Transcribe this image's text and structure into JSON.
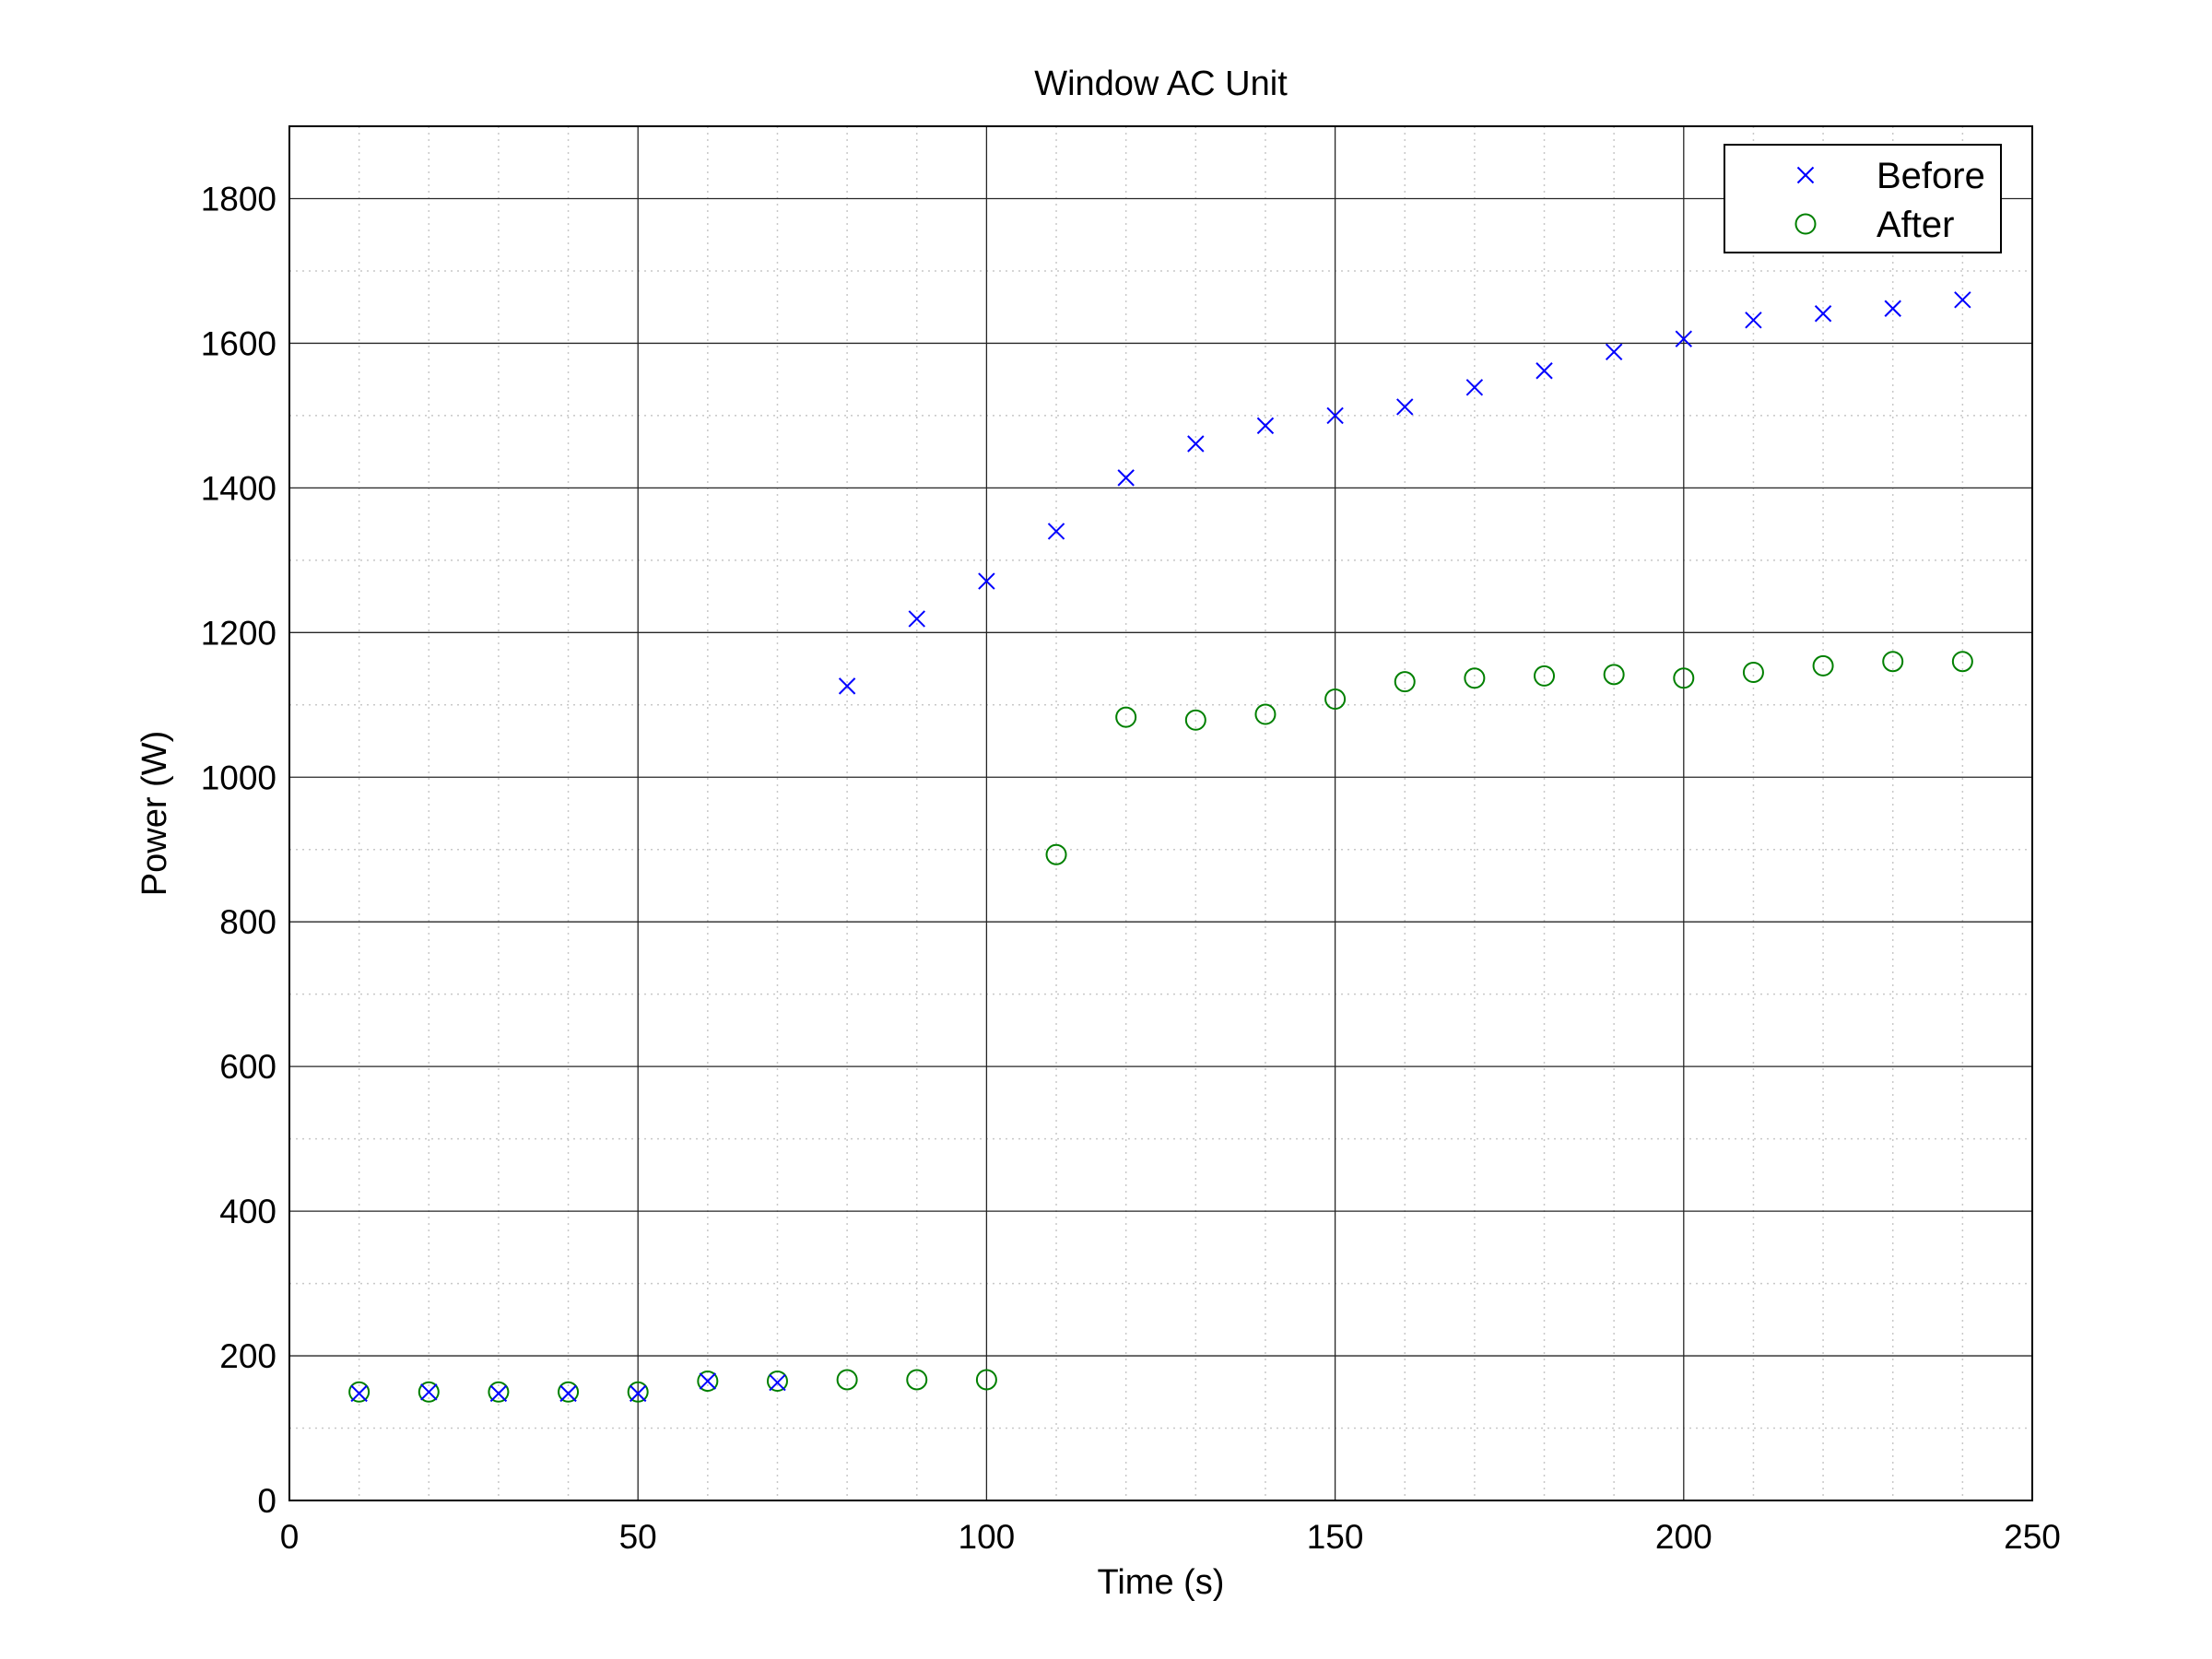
{
  "chart_data": {
    "type": "scatter",
    "title": "Window AC Unit",
    "xlabel": "Time (s)",
    "ylabel": "Power (W)",
    "xlim": [
      0,
      250
    ],
    "ylim": [
      0,
      1900
    ],
    "x_ticks": [
      0,
      50,
      100,
      150,
      200,
      250
    ],
    "y_ticks": [
      0,
      200,
      400,
      600,
      800,
      1000,
      1200,
      1400,
      1600,
      1800
    ],
    "grid": true,
    "minor_grid": true,
    "legend_position": "top-right",
    "series": [
      {
        "name": "Before",
        "marker": "x",
        "color": "#0000ff",
        "x": [
          10,
          20,
          30,
          40,
          50,
          60,
          70,
          80,
          90,
          100,
          110,
          120,
          130,
          140,
          150,
          160,
          170,
          180,
          190,
          200,
          210,
          220,
          230,
          240
        ],
        "y": [
          148,
          150,
          148,
          148,
          148,
          165,
          163,
          1126,
          1219,
          1271,
          1340,
          1414,
          1461,
          1486,
          1500,
          1512,
          1539,
          1562,
          1588,
          1606,
          1632,
          1641,
          1648,
          1660
        ]
      },
      {
        "name": "After",
        "marker": "o",
        "color": "#008000",
        "x": [
          10,
          20,
          30,
          40,
          50,
          60,
          70,
          80,
          90,
          100,
          110,
          120,
          130,
          140,
          150,
          160,
          170,
          180,
          190,
          200,
          210,
          220,
          230,
          240
        ],
        "y": [
          150,
          150,
          150,
          150,
          150,
          165,
          165,
          167,
          167,
          167,
          893,
          1083,
          1079,
          1087,
          1108,
          1132,
          1137,
          1140,
          1142,
          1137,
          1145,
          1154,
          1160,
          1160
        ]
      }
    ]
  }
}
